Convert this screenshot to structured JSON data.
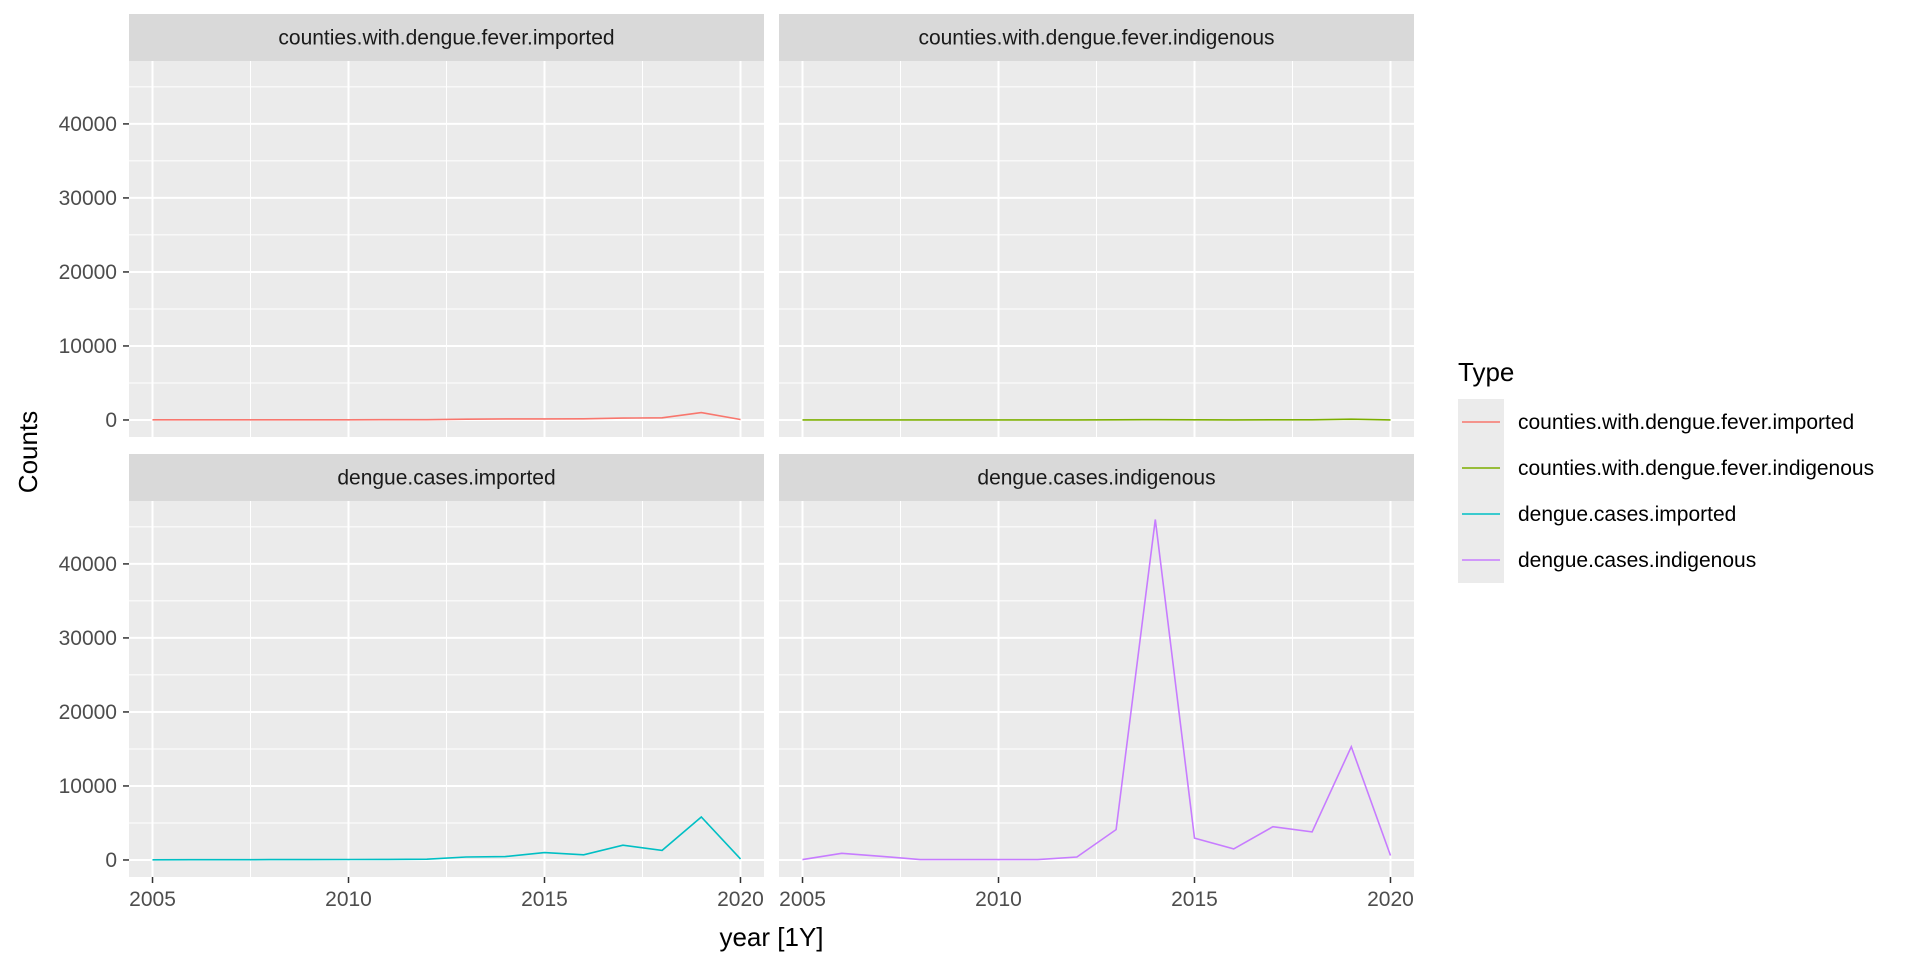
{
  "chart_data": {
    "type": "line",
    "facet_layout": "2x2",
    "xlabel": "year [1Y]",
    "ylabel": "Counts",
    "xlim": [
      2004.4,
      2020.6
    ],
    "ylim": [
      -2300,
      48500
    ],
    "x_ticks": [
      2005,
      2010,
      2015,
      2020
    ],
    "y_ticks": [
      0,
      10000,
      20000,
      30000,
      40000
    ],
    "grid": true,
    "x": [
      2005,
      2006,
      2007,
      2008,
      2009,
      2010,
      2011,
      2012,
      2013,
      2014,
      2015,
      2016,
      2017,
      2018,
      2019,
      2020
    ],
    "legend": {
      "title": "Type",
      "placement": "right"
    },
    "series": [
      {
        "name": "counties.with.dengue.fever.imported",
        "color": "#F8766D",
        "values": [
          20,
          25,
          25,
          30,
          30,
          30,
          35,
          40,
          100,
          150,
          150,
          160,
          250,
          300,
          1000,
          60
        ]
      },
      {
        "name": "counties.with.dengue.fever.indigenous",
        "color": "#7CAE00",
        "values": [
          5,
          10,
          5,
          5,
          5,
          5,
          5,
          10,
          20,
          40,
          20,
          15,
          20,
          25,
          100,
          5
        ]
      },
      {
        "name": "dengue.cases.imported",
        "color": "#00BFC4",
        "values": [
          30,
          40,
          40,
          50,
          50,
          60,
          80,
          100,
          400,
          450,
          1000,
          700,
          2000,
          1300,
          5800,
          150
        ]
      },
      {
        "name": "dengue.cases.indigenous",
        "color": "#C77CFF",
        "values": [
          50,
          900,
          500,
          50,
          50,
          50,
          50,
          400,
          4100,
          46000,
          2950,
          1500,
          4500,
          3800,
          15300,
          600
        ]
      }
    ]
  }
}
